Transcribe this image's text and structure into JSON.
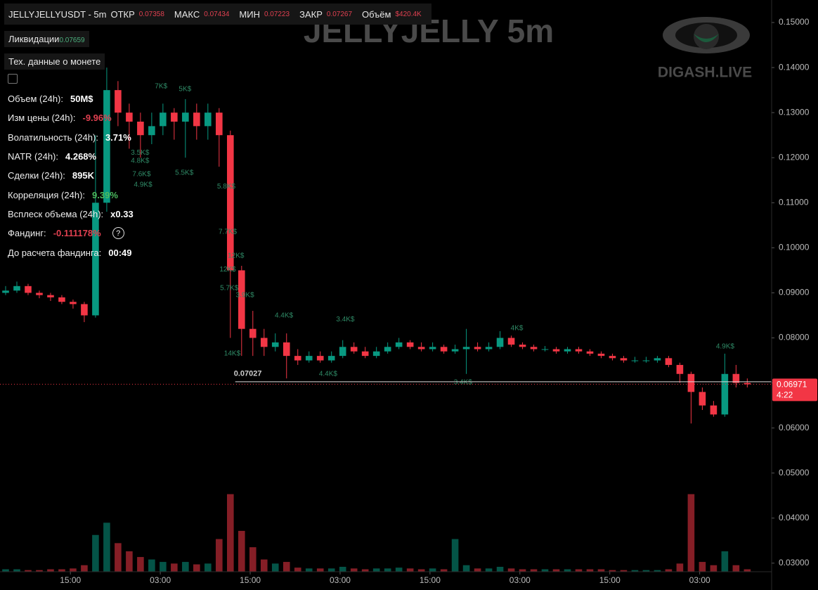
{
  "header": {
    "symbol": "JELLYJELLYUSDT - 5m",
    "open_label": "ОТКР",
    "open": "0.07358",
    "high_label": "МАКС",
    "high": "0.07434",
    "low_label": "МИН",
    "low": "0.07223",
    "close_label": "ЗАКР",
    "close": "0.07267",
    "volume_label": "Объём",
    "volume": "$420.4K"
  },
  "liquidations": {
    "label": "Ликвидации",
    "value": "0.07659"
  },
  "coin_data_button": "Тех. данные о монете",
  "stats": [
    {
      "label": "Объем (24h):",
      "value": "50M$",
      "tone": "white"
    },
    {
      "label": "Изм цены  (24h):",
      "value": "-9.96%",
      "tone": "red"
    },
    {
      "label": "Волатильность  (24h):",
      "value": "3.71%",
      "tone": "white"
    },
    {
      "label": "NATR (24h):",
      "value": "4.268%",
      "tone": "white"
    },
    {
      "label": "Сделки (24h):",
      "value": "895K",
      "tone": "white"
    },
    {
      "label": "Корреляция (24h):",
      "value": "9.39%",
      "tone": "green"
    },
    {
      "label": "Всплеск объема (24h):",
      "value": "x0.33",
      "tone": "white"
    },
    {
      "label": "Фандинг:",
      "value": "-0.111178%",
      "tone": "red",
      "help": "?"
    },
    {
      "label": "До расчета фандинга:",
      "value": "00:49",
      "tone": "white"
    }
  ],
  "watermark": {
    "title": "JELLYJELLY 5m",
    "brand": "DIGASH.LIVE"
  },
  "chart_data": {
    "type": "candlestick",
    "up_color": "#089981",
    "down_color": "#f23645",
    "xlim": [
      0,
      103
    ],
    "xticks": [
      {
        "value": 9.4,
        "label": "15:00"
      },
      {
        "value": 21.4,
        "label": "03:00"
      },
      {
        "value": 33.4,
        "label": "15:00"
      },
      {
        "value": 45.4,
        "label": "03:00"
      },
      {
        "value": 57.4,
        "label": "15:00"
      },
      {
        "value": 69.4,
        "label": "03:00"
      },
      {
        "value": 81.4,
        "label": "15:00"
      },
      {
        "value": 93.4,
        "label": "03:00"
      }
    ],
    "ylim": [
      0.0281,
      0.155
    ],
    "yticks": [
      {
        "value": 0.03,
        "label": "0.03000"
      },
      {
        "value": 0.04,
        "label": "0.04000"
      },
      {
        "value": 0.05,
        "label": "0.05000"
      },
      {
        "value": 0.06,
        "label": "0.06000"
      },
      {
        "value": 0.07,
        "label": "0.07000"
      },
      {
        "value": 0.08,
        "label": "0.08000"
      },
      {
        "value": 0.09,
        "label": "0.09000"
      },
      {
        "value": 0.1,
        "label": "0.10000"
      },
      {
        "value": 0.11,
        "label": "0.11000"
      },
      {
        "value": 0.12,
        "label": "0.12000"
      },
      {
        "value": 0.13,
        "label": "0.13000"
      },
      {
        "value": 0.14,
        "label": "0.14000"
      },
      {
        "value": 0.15,
        "label": "0.15000"
      }
    ],
    "y2lim": [
      0,
      700
    ],
    "x": [
      0.75,
      2.25,
      3.75,
      5.25,
      6.75,
      8.25,
      9.75,
      11.25,
      12.75,
      14.25,
      15.75,
      17.25,
      18.75,
      20.25,
      21.75,
      23.25,
      24.75,
      26.25,
      27.75,
      29.25,
      30.75,
      32.25,
      33.75,
      35.25,
      36.75,
      38.25,
      39.75,
      41.25,
      42.75,
      44.25,
      45.75,
      47.25,
      48.75,
      50.25,
      51.75,
      53.25,
      54.75,
      56.25,
      57.75,
      59.25,
      60.75,
      62.25,
      63.75,
      65.25,
      66.75,
      68.25,
      69.75,
      71.25,
      72.75,
      74.25,
      75.75,
      77.25,
      78.75,
      80.25,
      81.75,
      83.25,
      84.75,
      86.25,
      87.75,
      89.25,
      90.75,
      92.25,
      93.75,
      95.25,
      96.75,
      98.25,
      99.75
    ],
    "open": [
      0.09,
      0.0905,
      0.0915,
      0.09,
      0.0895,
      0.089,
      0.088,
      0.0875,
      0.085,
      0.11,
      0.135,
      0.13,
      0.128,
      0.125,
      0.127,
      0.13,
      0.128,
      0.13,
      0.127,
      0.13,
      0.125,
      0.095,
      0.082,
      0.08,
      0.078,
      0.079,
      0.076,
      0.075,
      0.076,
      0.075,
      0.076,
      0.078,
      0.077,
      0.076,
      0.077,
      0.078,
      0.079,
      0.078,
      0.0775,
      0.078,
      0.077,
      0.0775,
      0.078,
      0.0775,
      0.078,
      0.08,
      0.0785,
      0.078,
      0.0775,
      0.0775,
      0.077,
      0.0775,
      0.077,
      0.0765,
      0.076,
      0.0755,
      0.075,
      0.075,
      0.075,
      0.0755,
      0.074,
      0.072,
      0.068,
      0.065,
      0.063,
      0.072,
      0.07
    ],
    "high": [
      0.0915,
      0.0925,
      0.092,
      0.0905,
      0.09,
      0.0895,
      0.0885,
      0.088,
      0.125,
      0.14,
      0.137,
      0.132,
      0.13,
      0.13,
      0.132,
      0.131,
      0.133,
      0.132,
      0.132,
      0.131,
      0.126,
      0.096,
      0.086,
      0.082,
      0.081,
      0.081,
      0.0775,
      0.077,
      0.077,
      0.077,
      0.0795,
      0.079,
      0.078,
      0.078,
      0.079,
      0.08,
      0.0795,
      0.079,
      0.079,
      0.0785,
      0.0785,
      0.082,
      0.079,
      0.079,
      0.0815,
      0.0805,
      0.079,
      0.0785,
      0.0782,
      0.078,
      0.078,
      0.078,
      0.0775,
      0.077,
      0.0765,
      0.076,
      0.0758,
      0.0758,
      0.076,
      0.076,
      0.0745,
      0.0725,
      0.069,
      0.066,
      0.0765,
      0.074,
      0.071
    ],
    "low": [
      0.0895,
      0.09,
      0.0895,
      0.0888,
      0.0882,
      0.0875,
      0.0865,
      0.0835,
      0.0845,
      0.108,
      0.127,
      0.122,
      0.12,
      0.123,
      0.125,
      0.124,
      0.12,
      0.124,
      0.124,
      0.118,
      0.08,
      0.076,
      0.076,
      0.076,
      0.077,
      0.071,
      0.074,
      0.0745,
      0.0745,
      0.0745,
      0.0755,
      0.0765,
      0.0755,
      0.0755,
      0.0765,
      0.0775,
      0.0775,
      0.077,
      0.077,
      0.0765,
      0.0765,
      0.072,
      0.077,
      0.077,
      0.0775,
      0.078,
      0.0775,
      0.077,
      0.077,
      0.0765,
      0.0765,
      0.0765,
      0.076,
      0.0755,
      0.075,
      0.0745,
      0.0745,
      0.0745,
      0.0745,
      0.0735,
      0.07,
      0.061,
      0.064,
      0.0625,
      0.0625,
      0.069,
      0.069
    ],
    "close": [
      0.0905,
      0.0915,
      0.09,
      0.0895,
      0.089,
      0.088,
      0.0875,
      0.085,
      0.11,
      0.135,
      0.13,
      0.128,
      0.125,
      0.127,
      0.13,
      0.128,
      0.13,
      0.127,
      0.13,
      0.125,
      0.095,
      0.082,
      0.08,
      0.078,
      0.079,
      0.076,
      0.075,
      0.076,
      0.075,
      0.076,
      0.078,
      0.077,
      0.076,
      0.077,
      0.078,
      0.079,
      0.078,
      0.0775,
      0.078,
      0.077,
      0.0775,
      0.078,
      0.0775,
      0.078,
      0.08,
      0.0785,
      0.078,
      0.0775,
      0.0775,
      0.077,
      0.0775,
      0.077,
      0.0765,
      0.076,
      0.0755,
      0.075,
      0.075,
      0.075,
      0.0755,
      0.074,
      0.072,
      0.068,
      0.065,
      0.063,
      0.072,
      0.07,
      0.0697
    ],
    "volume": [
      3,
      3,
      2,
      2,
      3,
      3,
      4,
      8,
      45,
      60,
      35,
      25,
      18,
      15,
      12,
      10,
      12,
      9,
      10,
      40,
      95,
      50,
      30,
      15,
      10,
      12,
      5,
      4,
      4,
      4,
      6,
      4,
      3,
      4,
      4,
      5,
      4,
      3,
      4,
      3,
      40,
      8,
      4,
      4,
      6,
      4,
      3,
      3,
      3,
      3,
      3,
      3,
      3,
      3,
      2,
      2,
      2,
      2,
      2,
      3,
      10,
      95,
      12,
      8,
      25,
      8,
      3
    ],
    "trade_labels": [
      {
        "text": "7K$",
        "x": 21.5,
        "y": 0.1358
      },
      {
        "text": "5K$",
        "x": 24.7,
        "y": 0.1352
      },
      {
        "text": "3.5K$",
        "x": 18.7,
        "y": 0.1211
      },
      {
        "text": "4.8K$",
        "x": 18.7,
        "y": 0.1193
      },
      {
        "text": "7.6K$",
        "x": 18.9,
        "y": 0.1163
      },
      {
        "text": "4.9K$",
        "x": 19.1,
        "y": 0.114
      },
      {
        "text": "5.5K$",
        "x": 24.6,
        "y": 0.1166
      },
      {
        "text": "5.8K$",
        "x": 30.2,
        "y": 0.1136
      },
      {
        "text": "7.7K$",
        "x": 30.4,
        "y": 0.1035
      },
      {
        "text": "12K$",
        "x": 31.5,
        "y": 0.0982
      },
      {
        "text": "12K$",
        "x": 30.4,
        "y": 0.0952
      },
      {
        "text": "5.7K$",
        "x": 30.6,
        "y": 0.091
      },
      {
        "text": "3.9K$",
        "x": 32.7,
        "y": 0.0895
      },
      {
        "text": "4.4K$",
        "x": 37.9,
        "y": 0.0849
      },
      {
        "text": "3.4K$",
        "x": 46.1,
        "y": 0.0841
      },
      {
        "text": "14K$",
        "x": 31.0,
        "y": 0.0765
      },
      {
        "text": "4.4K$",
        "x": 43.8,
        "y": 0.072
      },
      {
        "text": "3.4K$",
        "x": 61.8,
        "y": 0.0701
      },
      {
        "text": "4K$",
        "x": 69.0,
        "y": 0.0821
      },
      {
        "text": "4.9K$",
        "x": 96.8,
        "y": 0.0781
      }
    ],
    "price_level": {
      "value": 0.07027,
      "start": 31.4
    },
    "last_price": {
      "value": 0.06971,
      "countdown": "4:22"
    }
  }
}
